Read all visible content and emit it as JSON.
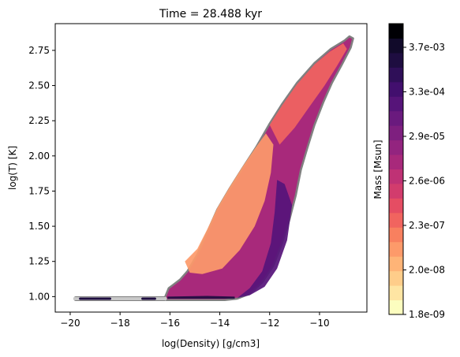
{
  "chart_data": {
    "type": "heatmap",
    "title": "Time = 28.488 kyr",
    "xlabel": "log(Density) [g/cm3]",
    "ylabel": "log(T) [K]",
    "xlim": [
      -20.6,
      -8.1
    ],
    "ylim": [
      0.89,
      2.94
    ],
    "x_ticks": [
      -20,
      -18,
      -16,
      -14,
      -12,
      -10
    ],
    "x_tick_labels": [
      "−20",
      "−18",
      "−16",
      "−14",
      "−12",
      "−10"
    ],
    "y_ticks": [
      1.0,
      1.25,
      1.5,
      1.75,
      2.0,
      2.25,
      2.5,
      2.75
    ],
    "y_tick_labels": [
      "1.00",
      "1.25",
      "1.50",
      "1.75",
      "2.00",
      "2.25",
      "2.50",
      "2.75"
    ],
    "grid": false,
    "colorbar": {
      "label": "Mass [Msun]",
      "tick_labels": [
        "1.8e-09",
        "2.0e-08",
        "2.3e-07",
        "2.6e-06",
        "2.9e-05",
        "3.3e-04",
        "3.7e-03"
      ],
      "colors": [
        "#fcfdbf",
        "#fee5a3",
        "#fecd8a",
        "#feb477",
        "#fd9a6a",
        "#f8805f",
        "#f1645f",
        "#e54d63",
        "#d23c6d",
        "#bf3275",
        "#a8297b",
        "#93247f",
        "#7e1f7f",
        "#6a1a7e",
        "#561479",
        "#420f6e",
        "#2f0f58",
        "#1e0d40",
        "#110a2a",
        "#000004"
      ]
    },
    "regions": [
      {
        "name": "outer-envelope",
        "level": "low",
        "polygon": [
          [
            -19.8,
            0.975
          ],
          [
            -19.8,
            0.995
          ],
          [
            -16.2,
            0.995
          ],
          [
            -16.05,
            1.06
          ],
          [
            -15.9,
            1.08
          ],
          [
            -15.6,
            1.12
          ],
          [
            -15.3,
            1.18
          ],
          [
            -14.9,
            1.3
          ],
          [
            -14.5,
            1.46
          ],
          [
            -14.1,
            1.62
          ],
          [
            -13.6,
            1.77
          ],
          [
            -13.1,
            1.91
          ],
          [
            -12.55,
            2.06
          ],
          [
            -12.0,
            2.23
          ],
          [
            -11.5,
            2.37
          ],
          [
            -10.9,
            2.52
          ],
          [
            -10.2,
            2.66
          ],
          [
            -9.55,
            2.76
          ],
          [
            -9.0,
            2.82
          ],
          [
            -8.8,
            2.85
          ],
          [
            -8.65,
            2.835
          ],
          [
            -8.75,
            2.77
          ],
          [
            -9.1,
            2.65
          ],
          [
            -9.5,
            2.52
          ],
          [
            -9.85,
            2.38
          ],
          [
            -10.2,
            2.22
          ],
          [
            -10.5,
            2.05
          ],
          [
            -10.75,
            1.9
          ],
          [
            -10.95,
            1.72
          ],
          [
            -11.2,
            1.55
          ],
          [
            -11.5,
            1.38
          ],
          [
            -11.85,
            1.22
          ],
          [
            -12.3,
            1.1
          ],
          [
            -12.8,
            1.02
          ],
          [
            -13.3,
            0.985
          ],
          [
            -13.8,
            0.975
          ]
        ],
        "color": "#a8297b"
      },
      {
        "name": "orange-core",
        "level": "mid-low",
        "polygon": [
          [
            -15.4,
            1.25
          ],
          [
            -14.9,
            1.34
          ],
          [
            -14.5,
            1.48
          ],
          [
            -14.1,
            1.63
          ],
          [
            -13.6,
            1.78
          ],
          [
            -13.1,
            1.92
          ],
          [
            -12.6,
            2.05
          ],
          [
            -12.15,
            2.16
          ],
          [
            -11.85,
            2.08
          ],
          [
            -11.95,
            1.88
          ],
          [
            -12.2,
            1.68
          ],
          [
            -12.6,
            1.5
          ],
          [
            -13.2,
            1.33
          ],
          [
            -13.9,
            1.2
          ],
          [
            -14.7,
            1.16
          ],
          [
            -15.2,
            1.17
          ]
        ],
        "color": "#fd9a6a"
      },
      {
        "name": "upper-ridge",
        "level": "mid",
        "polygon": [
          [
            -12.0,
            2.22
          ],
          [
            -11.5,
            2.36
          ],
          [
            -10.9,
            2.51
          ],
          [
            -10.2,
            2.65
          ],
          [
            -9.6,
            2.74
          ],
          [
            -9.05,
            2.8
          ],
          [
            -8.9,
            2.76
          ],
          [
            -9.3,
            2.64
          ],
          [
            -9.8,
            2.5
          ],
          [
            -10.4,
            2.35
          ],
          [
            -11.0,
            2.2
          ],
          [
            -11.6,
            2.08
          ]
        ],
        "color": "#f1645f"
      },
      {
        "name": "dense-band",
        "level": "high",
        "polygon": [
          [
            -11.7,
            1.83
          ],
          [
            -11.4,
            1.8
          ],
          [
            -11.1,
            1.65
          ],
          [
            -11.3,
            1.4
          ],
          [
            -11.7,
            1.2
          ],
          [
            -12.2,
            1.07
          ],
          [
            -12.8,
            1.01
          ],
          [
            -13.3,
            0.99
          ],
          [
            -12.8,
            1.06
          ],
          [
            -12.3,
            1.18
          ],
          [
            -11.95,
            1.38
          ],
          [
            -11.8,
            1.6
          ]
        ],
        "color": "#561479"
      },
      {
        "name": "floor-ridge",
        "level": "highest",
        "polygon": [
          [
            -16.1,
            0.985
          ],
          [
            -16.1,
            1.0
          ],
          [
            -14.5,
            1.005
          ],
          [
            -13.4,
            1.0
          ],
          [
            -13.4,
            0.985
          ],
          [
            -14.5,
            0.985
          ]
        ],
        "color": "#1e0d40"
      }
    ],
    "floor_segments": [
      {
        "x": [
          -19.8,
          -16.2
        ],
        "y": 0.985,
        "color": "#c8c8c8"
      },
      {
        "x": [
          -19.6,
          -18.4
        ],
        "y": 0.985,
        "color": "#1e0d40"
      },
      {
        "x": [
          -17.1,
          -16.6
        ],
        "y": 0.985,
        "color": "#1e0d40"
      }
    ]
  }
}
